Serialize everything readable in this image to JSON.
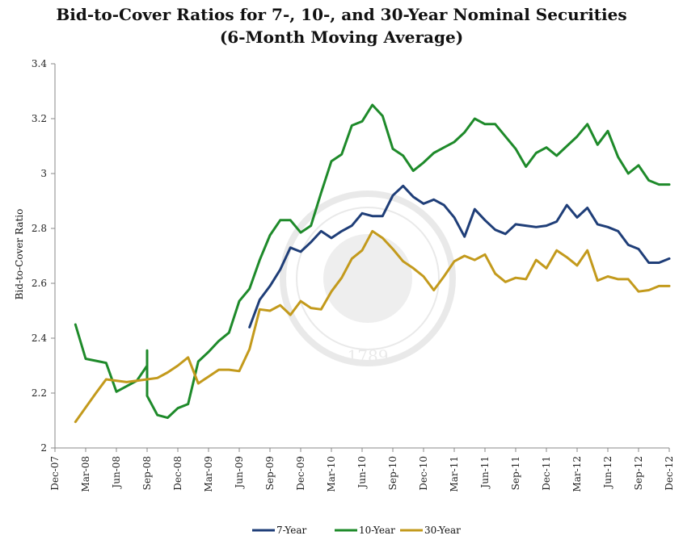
{
  "chart_data": {
    "type": "line",
    "title": "Bid-to-Cover Ratios for 7-, 10-, and 30-Year Nominal Securities",
    "subtitle": "(6-Month Moving Average)",
    "ylabel": "Bid-to-Cover Ratio",
    "xlabel": "",
    "ylim": [
      2,
      3.4
    ],
    "yticks": [
      "2",
      "2.2",
      "2.4",
      "2.6",
      "2.8",
      "3",
      "3.2",
      "3.4"
    ],
    "yticks_values": [
      2,
      2.2,
      2.4,
      2.6,
      2.8,
      3,
      3.2,
      3.4
    ],
    "xlim": [
      0,
      60
    ],
    "xticks": [
      "Dec-07",
      "Mar-08",
      "Jun-08",
      "Sep-08",
      "Dec-08",
      "Mar-09",
      "Jun-09",
      "Sep-09",
      "Dec-09",
      "Mar-10",
      "Jun-10",
      "Sep-10",
      "Dec-10",
      "Mar-11",
      "Jun-11",
      "Sep-11",
      "Dec-11",
      "Mar-12",
      "Jun-12",
      "Sep-12",
      "Dec-12"
    ],
    "grid": false,
    "legend_position": "bottom-center",
    "watermark": "1789",
    "series": [
      {
        "name": "7-Year",
        "color": "#1f3e78",
        "x": [
          19,
          20,
          21,
          22,
          23,
          24,
          25,
          26,
          27,
          28,
          29,
          30,
          31,
          32,
          33,
          34,
          35,
          36,
          37,
          38,
          39,
          40,
          41,
          42,
          43,
          44,
          45,
          46,
          47,
          48,
          49,
          50,
          51,
          52,
          53,
          54,
          55,
          56,
          57,
          58,
          59,
          60
        ],
        "y": [
          2.44,
          2.54,
          2.59,
          2.65,
          2.73,
          2.715,
          2.75,
          2.79,
          2.765,
          2.79,
          2.81,
          2.855,
          2.845,
          2.845,
          2.92,
          2.955,
          2.915,
          2.89,
          2.905,
          2.885,
          2.84,
          2.77,
          2.87,
          2.83,
          2.795,
          2.78,
          2.815,
          2.81,
          2.805,
          2.81,
          2.825,
          2.885,
          2.84,
          2.875,
          2.815,
          2.805,
          2.79,
          2.74,
          2.725,
          2.675,
          2.675,
          2.69
        ]
      },
      {
        "name": "10-Year",
        "color": "#1e8a2a",
        "x": [
          2,
          3,
          5,
          6,
          8,
          9,
          9,
          9,
          10,
          11,
          12,
          13,
          14,
          15,
          16,
          17,
          18,
          19,
          20,
          21,
          22,
          23,
          24,
          25,
          26,
          27,
          28,
          29,
          30,
          31,
          32,
          33,
          34,
          35,
          36,
          37,
          38,
          39,
          40,
          41,
          42,
          43,
          44,
          45,
          46,
          47,
          48,
          49,
          50,
          51,
          52,
          53,
          54,
          55,
          56,
          57,
          58,
          59,
          60
        ],
        "y": [
          2.45,
          2.325,
          2.31,
          2.205,
          2.245,
          2.3,
          2.355,
          2.19,
          2.12,
          2.11,
          2.145,
          2.16,
          2.315,
          2.35,
          2.39,
          2.42,
          2.535,
          2.58,
          2.685,
          2.775,
          2.83,
          2.83,
          2.785,
          2.81,
          2.93,
          3.045,
          3.07,
          3.175,
          3.19,
          3.25,
          3.21,
          3.09,
          3.065,
          3.01,
          3.04,
          3.075,
          3.095,
          3.115,
          3.15,
          3.2,
          3.18,
          3.18,
          3.135,
          3.09,
          3.025,
          3.075,
          3.095,
          3.065,
          3.1,
          3.135,
          3.18,
          3.105,
          3.155,
          3.06,
          3.0,
          3.03,
          2.975,
          2.96,
          2.96
        ]
      },
      {
        "name": "30-Year",
        "color": "#c39a1c",
        "x": [
          2,
          4,
          5,
          7,
          9,
          10,
          11,
          12,
          13,
          14,
          15,
          16,
          17,
          18,
          19,
          20,
          21,
          22,
          23,
          24,
          25,
          26,
          27,
          28,
          29,
          30,
          31,
          32,
          33,
          34,
          35,
          36,
          37,
          38,
          39,
          40,
          41,
          42,
          43,
          44,
          45,
          46,
          47,
          48,
          49,
          50,
          51,
          52,
          53,
          54,
          55,
          56,
          57,
          58,
          59,
          60
        ],
        "y": [
          2.095,
          2.2,
          2.25,
          2.24,
          2.25,
          2.255,
          2.275,
          2.3,
          2.33,
          2.235,
          2.26,
          2.285,
          2.285,
          2.28,
          2.36,
          2.505,
          2.5,
          2.52,
          2.485,
          2.535,
          2.51,
          2.505,
          2.57,
          2.62,
          2.69,
          2.72,
          2.79,
          2.765,
          2.725,
          2.68,
          2.655,
          2.625,
          2.575,
          2.625,
          2.68,
          2.7,
          2.685,
          2.705,
          2.635,
          2.605,
          2.62,
          2.615,
          2.685,
          2.655,
          2.72,
          2.695,
          2.665,
          2.72,
          2.61,
          2.625,
          2.615,
          2.615,
          2.57,
          2.575,
          2.59,
          2.59
        ]
      }
    ]
  }
}
